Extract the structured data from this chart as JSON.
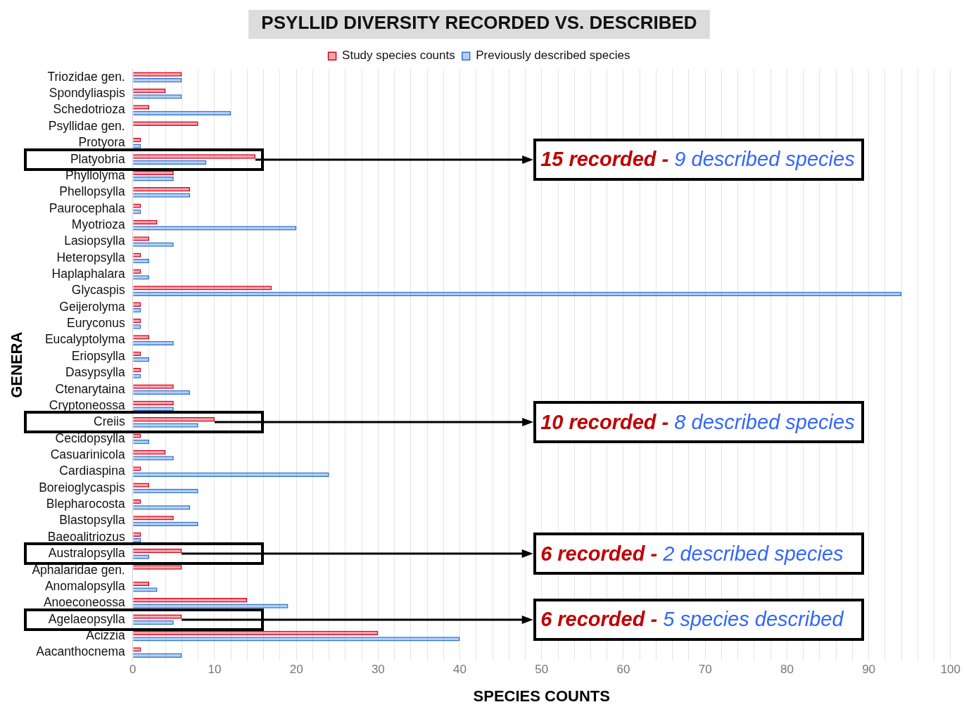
{
  "chart_data": {
    "type": "bar",
    "orientation": "horizontal",
    "title": "PSYLLID DIVERSITY RECORDED VS. DESCRIBED",
    "xlabel": "SPECIES COUNTS",
    "ylabel": "GENERA",
    "legend": "top",
    "categories": [
      "Triozidae gen.",
      "Spondyliaspis",
      "Schedotrioza",
      "Psyllidae gen.",
      "Protyora",
      "Platyobria",
      "Phyllolyma",
      "Phellopsylla",
      "Paurocephala",
      "Myotrioza",
      "Lasiopsylla",
      "Heteropsylla",
      "Haplaphalara",
      "Glycaspis",
      "Geijerolyma",
      "Euryconus",
      "Eucalyptolyma",
      "Eriopsylla",
      "Dasypsylla",
      "Ctenarytaina",
      "Cryptoneossa",
      "Creiis",
      "Cecidopsylla",
      "Casuarinicola",
      "Cardiaspina",
      "Boreioglycaspis",
      "Blepharocosta",
      "Blastopsylla",
      "Baeoalitriozus",
      "Australopsylla",
      "Aphalaridae gen.",
      "Anomalopsylla",
      "Anoeconeossa",
      "Agelaeopsylla",
      "Acizzia",
      "Aacanthocnema"
    ],
    "series": [
      {
        "name": "Study species counts",
        "color": "#e0001b",
        "values": [
          6,
          4,
          2,
          8,
          1,
          15,
          5,
          7,
          1,
          3,
          2,
          1,
          1,
          17,
          1,
          1,
          2,
          1,
          1,
          5,
          5,
          10,
          1,
          4,
          1,
          2,
          1,
          5,
          1,
          6,
          6,
          2,
          14,
          6,
          30,
          1
        ]
      },
      {
        "name": "Previously described species",
        "color": "#2e75d6",
        "values": [
          6,
          6,
          12,
          0,
          1,
          9,
          5,
          7,
          1,
          20,
          5,
          2,
          2,
          94,
          1,
          1,
          5,
          2,
          1,
          7,
          5,
          8,
          2,
          5,
          24,
          8,
          7,
          8,
          1,
          2,
          0,
          3,
          19,
          5,
          40,
          6
        ]
      }
    ],
    "xlim": [
      0,
      100
    ],
    "xticks": [
      0,
      {
        "value": 2,
        "label": null
      },
      {
        "value": 4,
        "label": null
      },
      {
        "value": 6,
        "label": null
      },
      {
        "value": 8,
        "label": null
      },
      10,
      {
        "value": 12,
        "label": null
      },
      {
        "value": 14,
        "label": null
      },
      {
        "value": 16,
        "label": null
      },
      {
        "value": 18,
        "label": null
      },
      20,
      {
        "value": 22,
        "label": null
      },
      {
        "value": 24,
        "label": null
      },
      {
        "value": 26,
        "label": null
      },
      {
        "value": 28,
        "label": null
      },
      30,
      {
        "value": 32,
        "label": null
      },
      {
        "value": 34,
        "label": null
      },
      {
        "value": 36,
        "label": null
      },
      {
        "value": 38,
        "label": null
      },
      40,
      {
        "value": 42,
        "label": null
      },
      {
        "value": 44,
        "label": null
      },
      {
        "value": 46,
        "label": null
      },
      {
        "value": 48,
        "label": null
      },
      50,
      {
        "value": 52,
        "label": null
      },
      {
        "value": 54,
        "label": null
      },
      {
        "value": 56,
        "label": null
      },
      {
        "value": 58,
        "label": null
      },
      60,
      {
        "value": 62,
        "label": null
      },
      {
        "value": 64,
        "label": null
      },
      {
        "value": 66,
        "label": null
      },
      {
        "value": 68,
        "label": null
      },
      70,
      {
        "value": 72,
        "label": null
      },
      {
        "value": 74,
        "label": null
      },
      {
        "value": 76,
        "label": null
      },
      {
        "value": 78,
        "label": null
      },
      80,
      {
        "value": 82,
        "label": null
      },
      {
        "value": 84,
        "label": null
      },
      {
        "value": 86,
        "label": null
      },
      {
        "value": 88,
        "label": null
      },
      90,
      {
        "value": 92,
        "label": null
      },
      {
        "value": 94,
        "label": null
      },
      {
        "value": 96,
        "label": null
      },
      {
        "value": 98,
        "label": null
      },
      100
    ],
    "grid": "x",
    "annotations": [
      {
        "text": "15 recorded - 9 described species",
        "x": 15,
        "y": "Platyobria"
      },
      {
        "text": "10 recorded - 8 described species",
        "x": 10,
        "y": "Creiis"
      },
      {
        "text": "6 recorded - 2 described species",
        "x": 6,
        "y": "Australopsylla"
      },
      {
        "text": "6 recorded - 5 species described",
        "x": 6,
        "y": "Agelaeopsylla"
      }
    ]
  }
}
